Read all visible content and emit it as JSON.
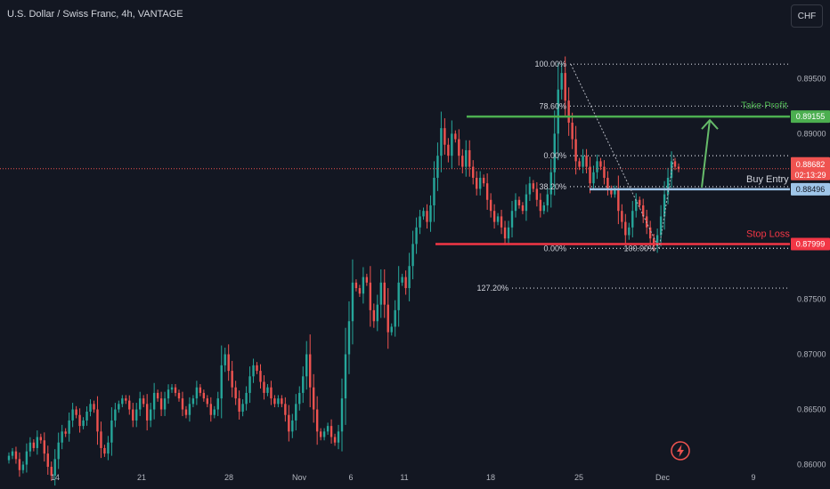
{
  "header": {
    "title": "U.S. Dollar / Swiss Franc, 4h, VANTAGE",
    "currency_button": "CHF"
  },
  "colors": {
    "background": "#131722",
    "up": "#26a69a",
    "down": "#ef5350",
    "take_profit": "#4caf50",
    "stop_loss": "#f23645",
    "buy_entry": "#9fc5e8",
    "current_price_line": "#ef5350",
    "annotation_arrow": "#66bb6a",
    "fib_lines": "#d1d4dc"
  },
  "icons": {
    "bottom": "lightning-bolt-icon"
  },
  "chart_data": {
    "type": "candlestick",
    "title": "U.S. Dollar / Swiss Franc, 4h, VANTAGE",
    "ylim": [
      0.8594,
      0.8997
    ],
    "y_ticks": [
      {
        "value": 0.86,
        "label": "0.86000"
      },
      {
        "value": 0.865,
        "label": "0.86500"
      },
      {
        "value": 0.87,
        "label": "0.87000"
      },
      {
        "value": 0.875,
        "label": "0.87500"
      },
      {
        "value": 0.88,
        "label": "0.88000"
      },
      {
        "value": 0.885,
        "label": "0.88500"
      },
      {
        "value": 0.89,
        "label": "0.89000"
      },
      {
        "value": 0.895,
        "label": "0.89500"
      }
    ],
    "x_ticks": [
      "14",
      "21",
      "28",
      "Nov",
      "6",
      "11",
      "18",
      "25",
      "Dec",
      "9"
    ],
    "price_labels": [
      {
        "name": "take_profit",
        "value": 0.89155,
        "label": "0.89155",
        "text": "Take Profit"
      },
      {
        "name": "current_price",
        "value": 0.88682,
        "label": "0.88682",
        "countdown": "02:13:29"
      },
      {
        "name": "buy_entry",
        "value": 0.88496,
        "label": "0.88496",
        "text": "Buy Entry"
      },
      {
        "name": "stop_loss",
        "value": 0.87999,
        "label": "0.87999",
        "text": "Stop Loss"
      }
    ],
    "fib_upper": [
      {
        "label": "100.00%",
        "value": 0.8963
      },
      {
        "label": "78.60%",
        "value": 0.8925
      },
      {
        "label": "0.00%",
        "value": 0.888
      },
      {
        "label": "38.20%",
        "value": 0.8852
      }
    ],
    "fib_lower": [
      {
        "label": "0.00%",
        "value": 0.8796
      },
      {
        "label": "100.00%",
        "value": 0.8796
      },
      {
        "label": "127.20%",
        "value": 0.876
      }
    ],
    "closes": [
      0.8608,
      0.8612,
      0.8605,
      0.8595,
      0.86,
      0.8612,
      0.862,
      0.8615,
      0.8625,
      0.8622,
      0.861,
      0.8598,
      0.859,
      0.8605,
      0.862,
      0.863,
      0.8628,
      0.864,
      0.865,
      0.8645,
      0.8635,
      0.864,
      0.8648,
      0.8655,
      0.865,
      0.863,
      0.8615,
      0.861,
      0.862,
      0.864,
      0.865,
      0.8655,
      0.866,
      0.8658,
      0.865,
      0.864,
      0.865,
      0.866,
      0.8655,
      0.864,
      0.865,
      0.8665,
      0.866,
      0.865,
      0.866,
      0.8668,
      0.867,
      0.8665,
      0.866,
      0.865,
      0.8645,
      0.8655,
      0.866,
      0.867,
      0.8665,
      0.866,
      0.8655,
      0.8645,
      0.865,
      0.866,
      0.869,
      0.87,
      0.8685,
      0.867,
      0.866,
      0.8648,
      0.8655,
      0.8665,
      0.868,
      0.869,
      0.8685,
      0.8675,
      0.8665,
      0.867,
      0.866,
      0.8655,
      0.866,
      0.8655,
      0.8645,
      0.863,
      0.864,
      0.8655,
      0.8665,
      0.868,
      0.87,
      0.867,
      0.865,
      0.863,
      0.8625,
      0.863,
      0.8635,
      0.8625,
      0.862,
      0.863,
      0.866,
      0.87,
      0.873,
      0.8765,
      0.876,
      0.8755,
      0.877,
      0.8765,
      0.874,
      0.873,
      0.8745,
      0.8765,
      0.8745,
      0.872,
      0.8725,
      0.874,
      0.8765,
      0.877,
      0.876,
      0.878,
      0.88,
      0.8815,
      0.8825,
      0.883,
      0.882,
      0.8835,
      0.886,
      0.888,
      0.8905,
      0.889,
      0.888,
      0.89,
      0.8895,
      0.888,
      0.887,
      0.8885,
      0.887,
      0.886,
      0.885,
      0.886,
      0.8855,
      0.884,
      0.883,
      0.882,
      0.8825,
      0.8815,
      0.8805,
      0.8815,
      0.883,
      0.884,
      0.8835,
      0.883,
      0.8845,
      0.8855,
      0.885,
      0.884,
      0.883,
      0.8835,
      0.8845,
      0.8865,
      0.89,
      0.894,
      0.8955,
      0.893,
      0.891,
      0.8895,
      0.8875,
      0.887,
      0.888,
      0.887,
      0.8855,
      0.8865,
      0.8875,
      0.887,
      0.886,
      0.885,
      0.8845,
      0.885,
      0.883,
      0.882,
      0.8808,
      0.8815,
      0.883,
      0.884,
      0.8835,
      0.8825,
      0.8815,
      0.8805,
      0.8798,
      0.8808,
      0.8825,
      0.8845,
      0.886,
      0.8875,
      0.887,
      0.8868
    ],
    "annotations": [
      "uptrend-arrow-to-take-profit",
      "fib-retracement-dotted-diagonal"
    ]
  }
}
